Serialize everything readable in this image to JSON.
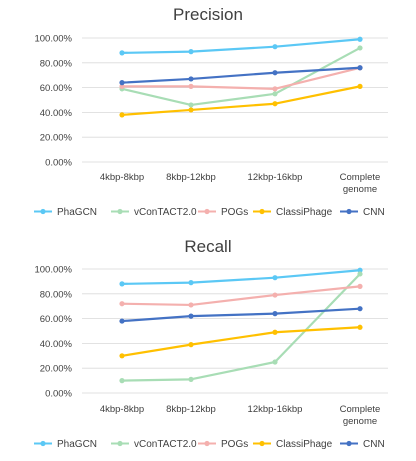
{
  "chart_data": [
    {
      "type": "line",
      "title": "Precision",
      "categories": [
        "4kbp-8kbp",
        "8kbp-12kbp",
        "12kbp-16kbp",
        "Complete genome"
      ],
      "category_lines": [
        [
          "4kbp-8kbp"
        ],
        [
          "8kbp-12kbp"
        ],
        [
          "12kbp-16kbp"
        ],
        [
          "Complete",
          "genome"
        ]
      ],
      "y_ticks": [
        "0.00%",
        "20.00%",
        "40.00%",
        "60.00%",
        "80.00%",
        "100.00%"
      ],
      "ylim": [
        0,
        100
      ],
      "grid": true,
      "legend_position": "bottom",
      "series": [
        {
          "name": "PhaGCN",
          "color": "#5BC8F5",
          "values": [
            88,
            89,
            93,
            99
          ]
        },
        {
          "name": "vConTACT2.0",
          "color": "#A8DDB5",
          "values": [
            59,
            46,
            55,
            92
          ]
        },
        {
          "name": "POGs",
          "color": "#F4B0AE",
          "values": [
            61,
            61,
            59,
            76
          ]
        },
        {
          "name": "ClassiPhage",
          "color": "#FFC000",
          "values": [
            38,
            42,
            47,
            61
          ]
        },
        {
          "name": "CNN",
          "color": "#4472C4",
          "values": [
            64,
            67,
            72,
            76
          ]
        }
      ]
    },
    {
      "type": "line",
      "title": "Recall",
      "categories": [
        "4kbp-8kbp",
        "8kbp-12kbp",
        "12kbp-16kbp",
        "Complete genome"
      ],
      "category_lines": [
        [
          "4kbp-8kbp"
        ],
        [
          "8kbp-12kbp"
        ],
        [
          "12kbp-16kbp"
        ],
        [
          "Complete",
          "genome"
        ]
      ],
      "y_ticks": [
        "0.00%",
        "20.00%",
        "40.00%",
        "60.00%",
        "80.00%",
        "100.00%"
      ],
      "ylim": [
        0,
        100
      ],
      "grid": true,
      "legend_position": "bottom",
      "series": [
        {
          "name": "PhaGCN",
          "color": "#5BC8F5",
          "values": [
            88,
            89,
            93,
            99
          ]
        },
        {
          "name": "vConTACT2.0",
          "color": "#A8DDB5",
          "values": [
            10,
            11,
            25,
            96
          ]
        },
        {
          "name": "POGs",
          "color": "#F4B0AE",
          "values": [
            72,
            71,
            79,
            86
          ]
        },
        {
          "name": "ClassiPhage",
          "color": "#FFC000",
          "values": [
            30,
            39,
            49,
            53
          ]
        },
        {
          "name": "CNN",
          "color": "#4472C4",
          "values": [
            58,
            62,
            64,
            68
          ]
        }
      ]
    }
  ]
}
